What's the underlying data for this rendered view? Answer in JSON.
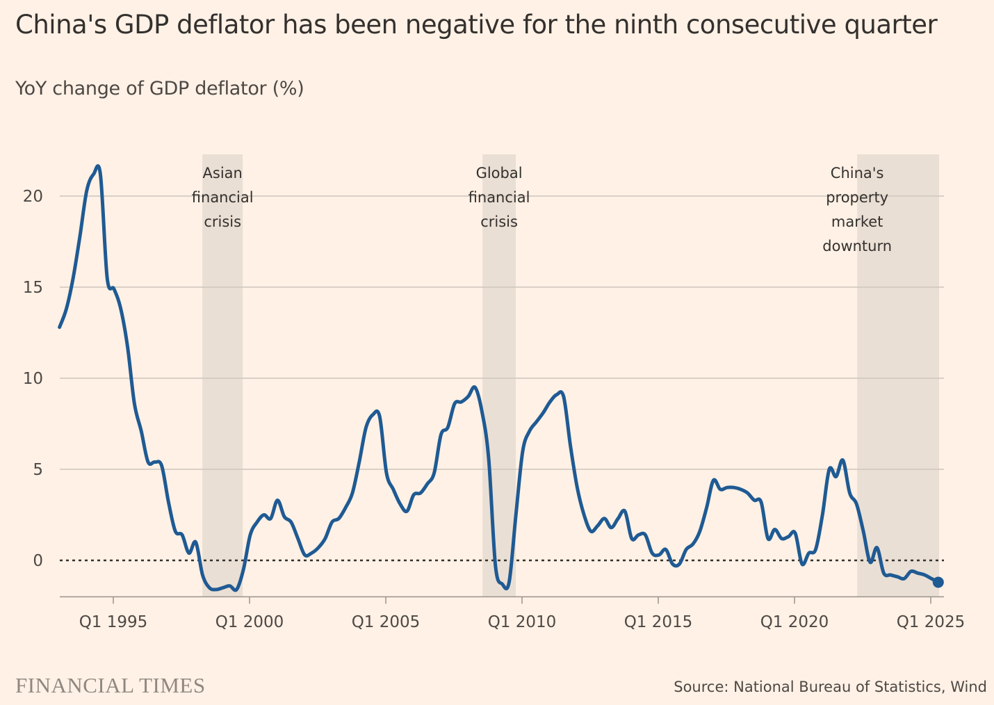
{
  "chart_data": {
    "type": "line",
    "title": "China's GDP deflator has been negative for the ninth consecutive quarter",
    "subtitle": "YoY change of GDP deflator (%)",
    "xlabel": "",
    "ylabel": "YoY change of GDP deflator (%)",
    "x_start": "Q1 1993",
    "x_frequency": "quarterly",
    "xlim": [
      1993.0,
      2025.35
    ],
    "ylim": [
      -2,
      22
    ],
    "y_ticks": [
      0,
      5,
      10,
      15,
      20
    ],
    "x_ticks": [
      {
        "label": "Q1 1995",
        "value": 1995
      },
      {
        "label": "Q1 2000",
        "value": 2000
      },
      {
        "label": "Q1 2005",
        "value": 2005
      },
      {
        "label": "Q1 2010",
        "value": 2010
      },
      {
        "label": "Q1 2015",
        "value": 2015
      },
      {
        "label": "Q1 2020",
        "value": 2020
      },
      {
        "label": "Q1 2025",
        "value": 2025
      }
    ],
    "grid": true,
    "zero_line": "dotted",
    "series": [
      {
        "name": "GDP deflator YoY",
        "color": "#1F5A93",
        "values": [
          12.8,
          13.8,
          15.5,
          17.8,
          20.3,
          21.2,
          21.2,
          15.5,
          14.9,
          13.8,
          11.7,
          8.6,
          7.1,
          5.4,
          5.4,
          5.2,
          3.2,
          1.6,
          1.4,
          0.4,
          1.0,
          -0.8,
          -1.5,
          -1.6,
          -1.5,
          -1.4,
          -1.6,
          -0.5,
          1.4,
          2.1,
          2.5,
          2.3,
          3.3,
          2.4,
          2.1,
          1.2,
          0.3,
          0.4,
          0.7,
          1.2,
          2.1,
          2.3,
          2.9,
          3.7,
          5.4,
          7.3,
          8.0,
          7.9,
          4.8,
          3.9,
          3.1,
          2.7,
          3.6,
          3.7,
          4.2,
          4.8,
          6.9,
          7.3,
          8.6,
          8.7,
          9.0,
          9.5,
          8.2,
          5.6,
          -0.3,
          -1.3,
          -1.2,
          2.5,
          6.0,
          7.1,
          7.6,
          8.1,
          8.7,
          9.1,
          9.0,
          6.3,
          4.0,
          2.5,
          1.6,
          1.9,
          2.3,
          1.8,
          2.3,
          2.7,
          1.2,
          1.4,
          1.4,
          0.4,
          0.3,
          0.6,
          -0.2,
          -0.2,
          0.6,
          0.9,
          1.6,
          2.9,
          4.4,
          3.9,
          4.0,
          4.0,
          3.9,
          3.7,
          3.3,
          3.2,
          1.2,
          1.7,
          1.2,
          1.3,
          1.5,
          -0.2,
          0.4,
          0.6,
          2.5,
          5.0,
          4.6,
          5.5,
          3.7,
          3.1,
          1.6,
          -0.1,
          0.7,
          -0.7,
          -0.8,
          -0.9,
          -1.0,
          -0.6,
          -0.7,
          -0.8,
          -1.0,
          -1.2
        ]
      }
    ],
    "shaded_periods": [
      {
        "label_lines": [
          "Asian",
          "financial",
          "crisis"
        ],
        "start": 1998.27,
        "end": 1999.75
      },
      {
        "label_lines": [
          "Global",
          "financial",
          "crisis"
        ],
        "start": 2008.55,
        "end": 2009.77
      },
      {
        "label_lines": [
          "China's",
          "property",
          "market",
          "downturn"
        ],
        "start": 2022.3,
        "end": 2025.35
      }
    ]
  },
  "branding": "FINANCIAL TIMES",
  "source": "Source: National Bureau of Statistics, Wind",
  "colors": {
    "background": "#FFF1E5",
    "line": "#1F5A93",
    "shade": "#EADFD4",
    "grid": "#CEC6BD"
  }
}
